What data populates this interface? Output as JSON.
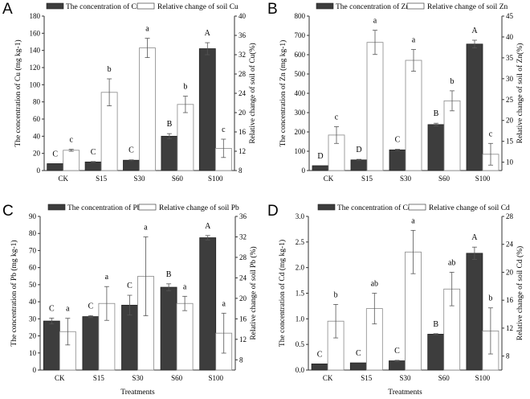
{
  "chart_data": [
    {
      "type": "bar",
      "panel": "A",
      "categories": [
        "CK",
        "S15",
        "S30",
        "S60",
        "S100"
      ],
      "ylabel": "The concentration of Cu (mg kg-1)",
      "y2label": "Relative change of soil of Cu(%)",
      "xlabel": "",
      "ylim": [
        0,
        180
      ],
      "yticks": [
        0,
        20,
        40,
        60,
        80,
        100,
        120,
        140,
        160,
        180
      ],
      "y2lim": [
        8,
        40
      ],
      "y2ticks": [
        8,
        12,
        16,
        20,
        24,
        28,
        32,
        36,
        40
      ],
      "series": [
        {
          "name": "The concentration of Cu",
          "axis": "left",
          "color": "#3d3d3d",
          "values": [
            8,
            10,
            12,
            40,
            142
          ],
          "errors": [
            0,
            0.5,
            0.5,
            3,
            7
          ],
          "letters": [
            "C",
            "C",
            "C",
            "B",
            "A"
          ]
        },
        {
          "name": "Relative change of soil Cu",
          "axis": "right",
          "color": "#ffffff",
          "values": [
            12.2,
            24.2,
            33.4,
            21.7,
            12.6
          ],
          "errors": [
            0.2,
            2.8,
            2.0,
            1.7,
            1.9
          ],
          "letters": [
            "c",
            "b",
            "a",
            "b",
            "c"
          ]
        }
      ]
    },
    {
      "type": "bar",
      "panel": "B",
      "categories": [
        "CK",
        "S15",
        "S30",
        "S60",
        "S100"
      ],
      "ylabel": "The concentration of Zn (mg kg-1)",
      "y2label": "Relative change of soil of Zn(%)",
      "xlabel": "",
      "ylim": [
        0,
        800
      ],
      "yticks": [
        0,
        100,
        200,
        300,
        400,
        500,
        600,
        700,
        800
      ],
      "y2lim": [
        8,
        45
      ],
      "y2ticks": [
        10,
        15,
        20,
        25,
        30,
        35,
        40,
        45
      ],
      "series": [
        {
          "name": "The concentration of Zn",
          "axis": "left",
          "color": "#3d3d3d",
          "values": [
            25,
            55,
            107,
            238,
            655
          ],
          "errors": [
            0,
            3,
            3,
            7,
            20
          ],
          "letters": [
            "D",
            "D",
            "C",
            "B",
            "A"
          ]
        },
        {
          "name": "Relative change of soil Zn",
          "axis": "right",
          "color": "#ffffff",
          "values": [
            16.5,
            38.7,
            34.4,
            24.7,
            11.9
          ],
          "errors": [
            2.0,
            2.9,
            2.6,
            2.4,
            2.6
          ],
          "letters": [
            "c",
            "a",
            "a",
            "b",
            "c"
          ]
        }
      ]
    },
    {
      "type": "bar",
      "panel": "C",
      "categories": [
        "CK",
        "S15",
        "S30",
        "S60",
        "S100"
      ],
      "ylabel": "The concentration of Pb (mg kg-1)",
      "y2label": "Relative change of soil Pb (%)",
      "xlabel": "Treatments",
      "ylim": [
        0,
        90
      ],
      "yticks": [
        0,
        10,
        20,
        30,
        40,
        50,
        60,
        70,
        80,
        90
      ],
      "y2lim": [
        6,
        36
      ],
      "y2ticks": [
        8,
        12,
        16,
        20,
        24,
        28,
        32,
        36
      ],
      "series": [
        {
          "name": "The concentration of Pb",
          "axis": "left",
          "color": "#3d3d3d",
          "values": [
            28.7,
            31.3,
            38,
            48.5,
            77.5
          ],
          "errors": [
            1.7,
            0.6,
            5.8,
            2,
            1.3
          ],
          "letters": [
            "C",
            "C",
            "C",
            "B",
            "A"
          ]
        },
        {
          "name": "Relative change of soil Pb",
          "axis": "right",
          "color": "#ffffff",
          "values": [
            13.5,
            19,
            24.3,
            19,
            13.2
          ],
          "errors": [
            2.6,
            3.3,
            7.7,
            1.4,
            3.9
          ],
          "letters": [
            "a",
            "a",
            "a",
            "a",
            "a"
          ]
        }
      ]
    },
    {
      "type": "bar",
      "panel": "D",
      "categories": [
        "CK",
        "S15",
        "S30",
        "S60",
        "S100"
      ],
      "ylabel": "The concentration of Cd (mg kg-1)",
      "y2label": "Relative change of soil Cd (%)",
      "xlabel": "Treatments",
      "ylim": [
        0,
        3
      ],
      "yticks": [
        "0.0",
        "0.5",
        "1.0",
        "1.5",
        "2.0",
        "2.5",
        "3.0"
      ],
      "y2lim": [
        6,
        28
      ],
      "y2ticks": [
        8,
        12,
        16,
        20,
        24,
        28
      ],
      "series": [
        {
          "name": "The concentration of Cd",
          "axis": "left",
          "color": "#3d3d3d",
          "values": [
            0.12,
            0.14,
            0.18,
            0.7,
            2.28
          ],
          "errors": [
            0,
            0,
            0.01,
            0.01,
            0.12
          ],
          "letters": [
            "C",
            "C",
            "C",
            "B",
            "A"
          ]
        },
        {
          "name": "Relative change of soil Cd",
          "axis": "right",
          "color": "#ffffff",
          "values": [
            13.0,
            14.8,
            22.9,
            17.6,
            11.6
          ],
          "errors": [
            2.4,
            2.2,
            3.1,
            2.4,
            3.3
          ],
          "letters": [
            "b",
            "ab",
            "a",
            "ab",
            "b"
          ]
        }
      ]
    }
  ]
}
